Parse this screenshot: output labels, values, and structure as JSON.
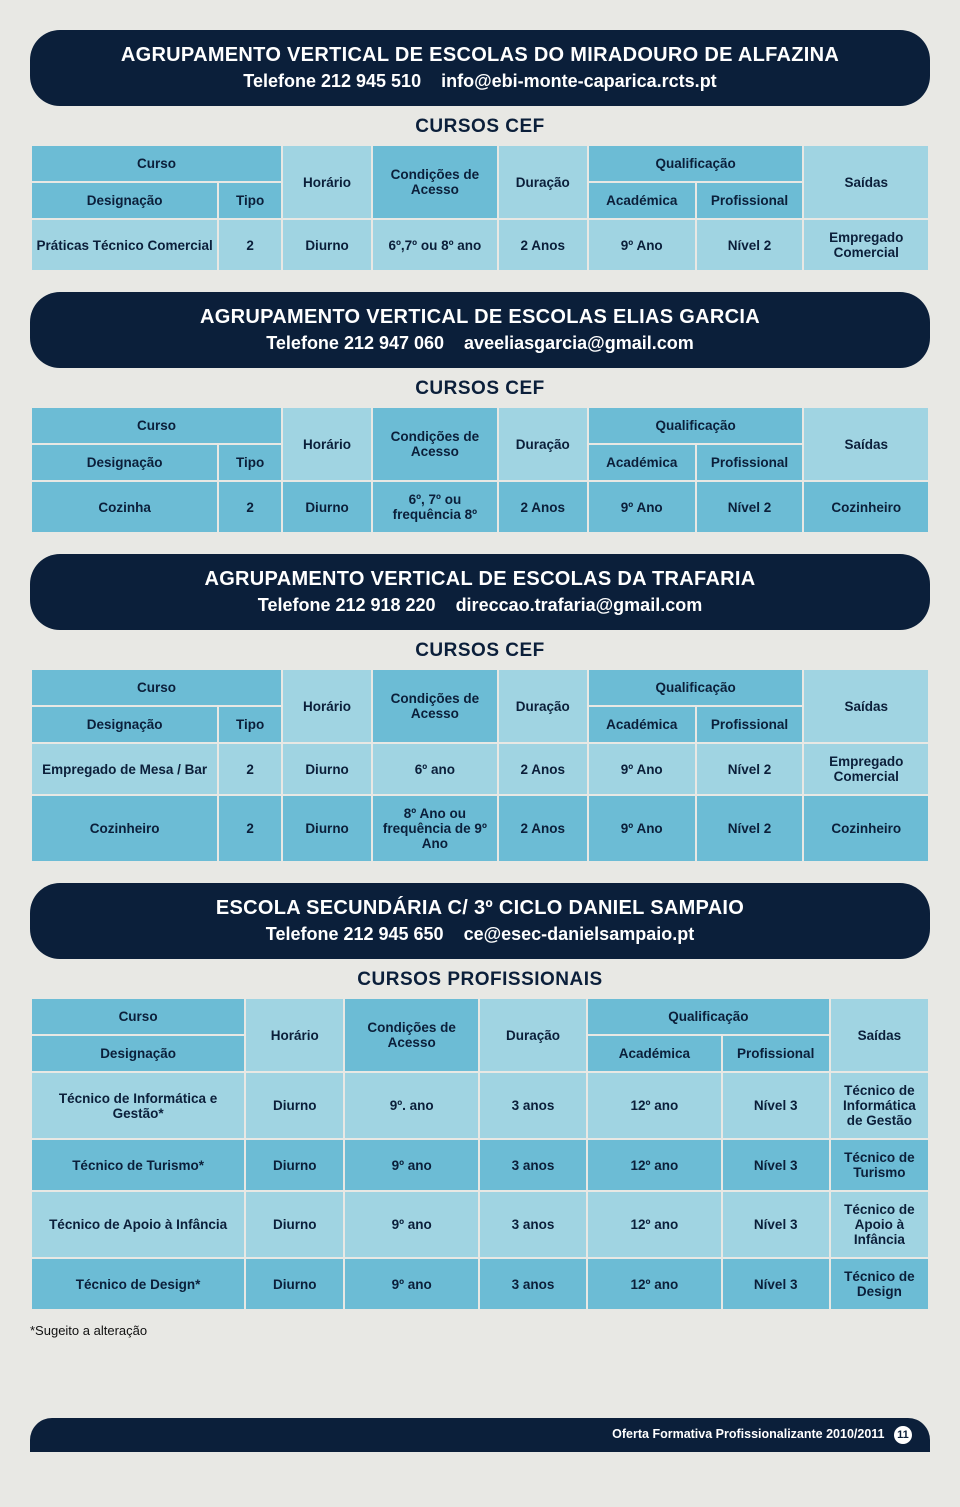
{
  "colors": {
    "header_bg": "#0b1f3a",
    "header_text": "#ffffff",
    "cell_primary": "#6cbcd5",
    "cell_secondary": "#a0d4e2",
    "cell_text": "#0b1f3a",
    "page_bg": "#e8e8e4"
  },
  "labels": {
    "curso": "Curso",
    "designacao": "Designação",
    "tipo": "Tipo",
    "horario": "Horário",
    "condicoes": "Condições de Acesso",
    "duracao": "Duração",
    "qualificacao": "Qualificação",
    "academica": "Académica",
    "profissional": "Profissional",
    "saidas": "Saídas"
  },
  "schools": [
    {
      "name": "AGRUPAMENTO VERTICAL DE ESCOLAS DO MIRADOURO DE ALFAZINA",
      "phone": "Telefone 212 945 510",
      "email": "info@ebi-monte-caparica.rcts.pt",
      "section_title": "CURSOS CEF",
      "has_tipo": true,
      "col_widths": [
        "21%",
        "7%",
        "10%",
        "14%",
        "10%",
        "12%",
        "12%",
        "14%"
      ],
      "rows": [
        {
          "cells": [
            "Práticas Técnico Comercial",
            "2",
            "Diurno",
            "6º,7º ou 8º ano",
            "2 Anos",
            "9º Ano",
            "Nível 2",
            "Empregado Comercial"
          ],
          "shade": "b"
        }
      ]
    },
    {
      "name": "AGRUPAMENTO VERTICAL DE ESCOLAS ELIAS GARCIA",
      "phone": "Telefone 212 947 060",
      "email": "aveeliasgarcia@gmail.com",
      "section_title": "CURSOS CEF",
      "has_tipo": true,
      "col_widths": [
        "21%",
        "7%",
        "10%",
        "14%",
        "10%",
        "12%",
        "12%",
        "14%"
      ],
      "rows": [
        {
          "cells": [
            "Cozinha",
            "2",
            "Diurno",
            "6º, 7º ou frequência 8º",
            "2 Anos",
            "9º Ano",
            "Nível 2",
            "Cozinheiro"
          ],
          "shade": "a"
        }
      ]
    },
    {
      "name": "AGRUPAMENTO VERTICAL DE ESCOLAS DA TRAFARIA",
      "phone": "Telefone 212 918 220",
      "email": "direccao.trafaria@gmail.com",
      "section_title": "CURSOS CEF",
      "has_tipo": true,
      "col_widths": [
        "21%",
        "7%",
        "10%",
        "14%",
        "10%",
        "12%",
        "12%",
        "14%"
      ],
      "rows": [
        {
          "cells": [
            "Empregado de Mesa / Bar",
            "2",
            "Diurno",
            "6º ano",
            "2 Anos",
            "9º Ano",
            "Nível 2",
            "Empregado Comercial"
          ],
          "shade": "b"
        },
        {
          "cells": [
            "Cozinheiro",
            "2",
            "Diurno",
            "8º Ano ou frequência de 9º Ano",
            "2 Anos",
            "9º Ano",
            "Nível 2",
            "Cozinheiro"
          ],
          "shade": "a"
        }
      ]
    },
    {
      "name": "ESCOLA SECUNDÁRIA C/ 3º CICLO DANIEL SAMPAIO",
      "phone": "Telefone 212 945 650",
      "email": "ce@esec-danielsampaio.pt",
      "section_title": "CURSOS PROFISSIONAIS",
      "has_tipo": false,
      "col_widths": [
        "24%",
        "11%",
        "15%",
        "12%",
        "15%",
        "12%",
        "11%"
      ],
      "rows": [
        {
          "cells": [
            "Técnico de Informática e Gestão*",
            "Diurno",
            "9º. ano",
            "3 anos",
            "12º ano",
            "Nível 3",
            "Técnico de Informática de Gestão"
          ],
          "shade": "b"
        },
        {
          "cells": [
            "Técnico de Turismo*",
            "Diurno",
            "9º ano",
            "3 anos",
            "12º ano",
            "Nível 3",
            "Técnico de Turismo"
          ],
          "shade": "a"
        },
        {
          "cells": [
            "Técnico de Apoio à Infância",
            "Diurno",
            "9º ano",
            "3 anos",
            "12º ano",
            "Nível 3",
            "Técnico de Apoio à Infância"
          ],
          "shade": "b"
        },
        {
          "cells": [
            "Técnico de Design*",
            "Diurno",
            "9º ano",
            "3 anos",
            "12º ano",
            "Nível 3",
            "Técnico de Design"
          ],
          "shade": "a"
        }
      ]
    }
  ],
  "footnote": "*Sugeito a alteração",
  "footer": {
    "text": "Oferta Formativa Profissionalizante 2010/2011",
    "page": "11"
  }
}
